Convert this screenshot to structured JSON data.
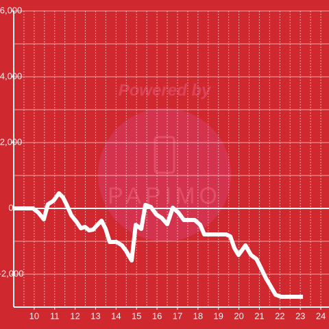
{
  "chart_data": {
    "type": "line",
    "watermark": [
      "Powered by",
      "PAPIMO"
    ],
    "x": [
      9,
      9.94,
      10.2,
      10.47,
      10.67,
      10.94,
      11.21,
      11.41,
      11.61,
      11.81,
      12.08,
      12.28,
      12.48,
      12.68,
      12.88,
      13.09,
      13.29,
      13.49,
      13.69,
      14.02,
      14.29,
      14.49,
      14.76,
      14.96,
      15.23,
      15.43,
      15.7,
      15.97,
      16.23,
      16.5,
      16.77,
      17.04,
      17.31,
      17.84,
      18.11,
      18.31,
      19.38,
      19.58,
      19.78,
      19.98,
      20.32,
      20.59,
      20.86,
      21.06,
      21.32,
      21.52,
      21.79,
      22.06,
      23.13
    ],
    "series": [
      {
        "color": "#ffffff",
        "values": [
          0,
          0,
          -125,
          -333,
          125,
          229,
          458,
          333,
          83,
          -208,
          -417,
          -604,
          -563,
          -667,
          -646,
          -500,
          -375,
          -625,
          -1021,
          -1021,
          -1125,
          -1292,
          -1583,
          -500,
          -625,
          104,
          42,
          -188,
          -292,
          -479,
          21,
          -125,
          -354,
          -354,
          -500,
          -792,
          -792,
          -854,
          -1208,
          -1417,
          -1125,
          -1417,
          -1542,
          -1792,
          -2125,
          -2333,
          -2625,
          -2688,
          -2688
        ]
      }
    ],
    "xlim": [
      9,
      24.4
    ],
    "xticks": [
      10,
      11,
      12,
      13,
      14,
      15,
      16,
      17,
      18,
      19,
      20,
      21,
      22,
      23,
      24
    ],
    "xgrid": [
      9.5,
      10,
      10.5,
      11,
      11.5,
      12,
      12.5,
      13,
      13.5,
      14,
      14.5,
      15,
      15.5,
      16,
      16.5,
      17,
      17.5,
      18,
      18.5,
      19,
      19.5,
      20,
      20.5,
      21,
      21.5,
      22,
      22.5,
      23,
      23.5,
      24
    ],
    "ylim": [
      -3000,
      6000
    ],
    "yticks": [
      {
        "value": -2000,
        "label": "-2,000"
      },
      0,
      {
        "value": 2000,
        "label": "2,000"
      },
      {
        "value": 4000,
        "label": "4,000"
      },
      {
        "value": 6000,
        "label": "6,000"
      }
    ],
    "ygrid": [
      -2000,
      -1000,
      1000,
      2000,
      3000,
      4000,
      5000,
      6000
    ],
    "grid": true
  }
}
